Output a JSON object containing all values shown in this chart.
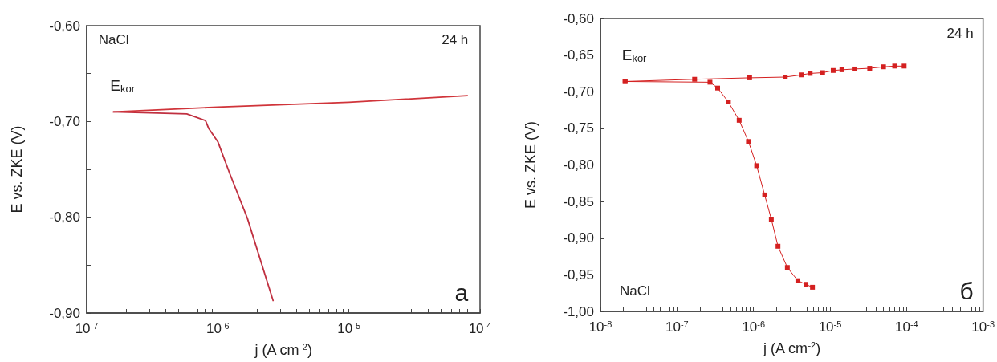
{
  "chart_data": [
    {
      "type": "line",
      "xlabel": "j (A cm$^{-2}$)",
      "ylabel": "E vs. ZKE (V)",
      "log": "x",
      "marker": "none",
      "line_style": "solid",
      "xlim": [
        1e-07,
        0.0001
      ],
      "ylim": [
        -0.9,
        -0.6
      ],
      "xticks": [
        {
          "value": 1e-07,
          "label": "10$^{-7}$"
        },
        {
          "value": 2e-07,
          "label": null
        },
        {
          "value": 3e-07,
          "label": null
        },
        {
          "value": 4e-07,
          "label": null
        },
        {
          "value": 5e-07,
          "label": null
        },
        {
          "value": 6e-07,
          "label": null
        },
        {
          "value": 7e-07,
          "label": null
        },
        {
          "value": 8e-07,
          "label": null
        },
        {
          "value": 9e-07,
          "label": null
        },
        {
          "value": 1e-06,
          "label": "10$^{-6}$"
        },
        {
          "value": 2e-06,
          "label": null
        },
        {
          "value": 3e-06,
          "label": null
        },
        {
          "value": 4e-06,
          "label": null
        },
        {
          "value": 5e-06,
          "label": null
        },
        {
          "value": 6e-06,
          "label": null
        },
        {
          "value": 7e-06,
          "label": null
        },
        {
          "value": 8e-06,
          "label": null
        },
        {
          "value": 9e-06,
          "label": null
        },
        {
          "value": 1e-05,
          "label": "10$^{-5}$"
        },
        {
          "value": 2e-05,
          "label": null
        },
        {
          "value": 3e-05,
          "label": null
        },
        {
          "value": 4e-05,
          "label": null
        },
        {
          "value": 5e-05,
          "label": null
        },
        {
          "value": 6e-05,
          "label": null
        },
        {
          "value": 7e-05,
          "label": null
        },
        {
          "value": 8e-05,
          "label": null
        },
        {
          "value": 9e-05,
          "label": null
        },
        {
          "value": 0.0001,
          "label": "10$^{-4}$"
        }
      ],
      "yticks": [
        {
          "value": -0.9,
          "label": "-0,90"
        },
        {
          "value": -0.85,
          "label": null
        },
        {
          "value": -0.8,
          "label": "-0,80"
        },
        {
          "value": -0.75,
          "label": null
        },
        {
          "value": -0.7,
          "label": "-0,70"
        },
        {
          "value": -0.65,
          "label": null
        },
        {
          "value": -0.6,
          "label": "-0,60"
        }
      ],
      "series": [
        {
          "color": "#d0343a",
          "x": [
            1.6e-07,
            1e-06,
            1e-05,
            8e-05
          ],
          "values": [
            -0.69,
            -0.685,
            -0.68,
            -0.673
          ]
        },
        {
          "color": "#c03040",
          "x": [
            1.6e-07,
            5.8e-07,
            8.05e-07,
            8.5e-07,
            1e-06,
            1.23e-06,
            1.68e-06,
            2.64e-06
          ],
          "values": [
            -0.69,
            -0.692,
            -0.699,
            -0.707,
            -0.721,
            -0.754,
            -0.801,
            -0.887
          ]
        }
      ],
      "annotations": [
        {
          "text": "E$_{kor}$",
          "x": 1.6e-07,
          "y": -0.69
        },
        "NaCl",
        "24 h",
        "a"
      ]
    },
    {
      "type": "line",
      "xlabel": "j (A cm$^{-2}$)",
      "ylabel": "E vs. ZKE (V)",
      "log": "x",
      "marker": "square",
      "line_style": "solid",
      "xlim": [
        1e-08,
        0.001
      ],
      "ylim": [
        -1.0,
        -0.6
      ],
      "xticks": [
        {
          "value": 1e-08,
          "label": "10$^{-8}$"
        },
        {
          "value": 2e-08,
          "label": null
        },
        {
          "value": 3e-08,
          "label": null
        },
        {
          "value": 4e-08,
          "label": null
        },
        {
          "value": 5e-08,
          "label": null
        },
        {
          "value": 6e-08,
          "label": null
        },
        {
          "value": 7e-08,
          "label": null
        },
        {
          "value": 8e-08,
          "label": null
        },
        {
          "value": 9e-08,
          "label": null
        },
        {
          "value": 1e-07,
          "label": "10$^{-7}$"
        },
        {
          "value": 2e-07,
          "label": null
        },
        {
          "value": 3e-07,
          "label": null
        },
        {
          "value": 4e-07,
          "label": null
        },
        {
          "value": 5e-07,
          "label": null
        },
        {
          "value": 6e-07,
          "label": null
        },
        {
          "value": 7e-07,
          "label": null
        },
        {
          "value": 8e-07,
          "label": null
        },
        {
          "value": 9e-07,
          "label": null
        },
        {
          "value": 1e-06,
          "label": "10$^{-6}$"
        },
        {
          "value": 2e-06,
          "label": null
        },
        {
          "value": 3e-06,
          "label": null
        },
        {
          "value": 4e-06,
          "label": null
        },
        {
          "value": 5e-06,
          "label": null
        },
        {
          "value": 6e-06,
          "label": null
        },
        {
          "value": 7e-06,
          "label": null
        },
        {
          "value": 8e-06,
          "label": null
        },
        {
          "value": 9e-06,
          "label": null
        },
        {
          "value": 1e-05,
          "label": "10$^{-5}$"
        },
        {
          "value": 2e-05,
          "label": null
        },
        {
          "value": 3e-05,
          "label": null
        },
        {
          "value": 4e-05,
          "label": null
        },
        {
          "value": 5e-05,
          "label": null
        },
        {
          "value": 6e-05,
          "label": null
        },
        {
          "value": 7e-05,
          "label": null
        },
        {
          "value": 8e-05,
          "label": null
        },
        {
          "value": 9e-05,
          "label": null
        },
        {
          "value": 0.0001,
          "label": "10$^{-4}$"
        },
        {
          "value": 0.0002,
          "label": null
        },
        {
          "value": 0.0003,
          "label": null
        },
        {
          "value": 0.0004,
          "label": null
        },
        {
          "value": 0.0005,
          "label": null
        },
        {
          "value": 0.0006,
          "label": null
        },
        {
          "value": 0.0007,
          "label": null
        },
        {
          "value": 0.0008,
          "label": null
        },
        {
          "value": 0.0009,
          "label": null
        },
        {
          "value": 0.001,
          "label": "10$^{-3}$"
        }
      ],
      "yticks": [
        {
          "value": -1.0,
          "label": "-1,00"
        },
        {
          "value": -0.95,
          "label": "-0,95"
        },
        {
          "value": -0.9,
          "label": "-0,90"
        },
        {
          "value": -0.85,
          "label": "-0,85"
        },
        {
          "value": -0.8,
          "label": "-0,80"
        },
        {
          "value": -0.75,
          "label": "-0,75"
        },
        {
          "value": -0.7,
          "label": "-0,70"
        },
        {
          "value": -0.65,
          "label": "-0,65"
        },
        {
          "value": -0.6,
          "label": "-0,60"
        }
      ],
      "series": [
        {
          "color": "#d42020",
          "x": [
            2.1e-08,
            1.7e-07,
            8.9e-07,
            2.6e-06,
            4.2e-06,
            5.5e-06,
            8e-06,
            1.1e-05,
            1.43e-05,
            2.07e-05,
            3.3e-05,
            5e-05,
            7e-05,
            9.3e-05
          ],
          "values": [
            -0.686,
            -0.683,
            -0.681,
            -0.68,
            -0.677,
            -0.675,
            -0.674,
            -0.671,
            -0.67,
            -0.669,
            -0.668,
            -0.666,
            -0.665,
            -0.665
          ]
        },
        {
          "color": "#d42020",
          "x": [
            2.1e-08,
            2.7e-07,
            3.4e-07,
            4.7e-07,
            6.5e-07,
            8.6e-07,
            1.1e-06,
            1.4e-06,
            1.71e-06,
            2.09e-06,
            2.77e-06,
            3.8e-06,
            4.85e-06,
            5.9e-06
          ],
          "values": [
            -0.686,
            -0.687,
            -0.695,
            -0.714,
            -0.739,
            -0.768,
            -0.801,
            -0.841,
            -0.874,
            -0.911,
            -0.94,
            -0.958,
            -0.963,
            -0.967
          ]
        }
      ],
      "annotations": [
        {
          "text": "E$_{kor}$",
          "x": 2.1e-08,
          "y": -0.686
        },
        "24 h",
        "NaCl",
        "б"
      ]
    }
  ]
}
